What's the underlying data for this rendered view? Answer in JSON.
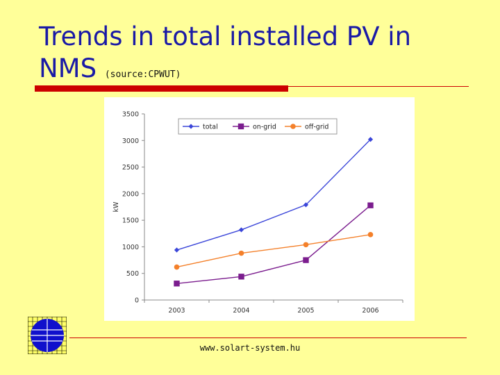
{
  "slide": {
    "title": "Trends in total installed PV in",
    "title_line2": "NMS",
    "subtitle": "(source:CPWUT)",
    "footer": "www.solart-system.hu"
  },
  "colors": {
    "background": "#ffff99",
    "title": "#1a1aa6",
    "rule": "#cc0000",
    "total": "#3b46d9",
    "on_grid": "#7b1d8e",
    "off_grid": "#f4802a"
  },
  "chart_data": {
    "type": "line",
    "title": "",
    "xlabel": "",
    "ylabel": "kW",
    "categories": [
      "2003",
      "2004",
      "2005",
      "2006"
    ],
    "ylim": [
      0,
      3500
    ],
    "yticks": [
      "0",
      "500",
      "1000",
      "1500",
      "2000",
      "2500",
      "3000",
      "3500"
    ],
    "legend_position": "top",
    "series": [
      {
        "name": "total",
        "marker": "diamond",
        "values": [
          940,
          1320,
          1790,
          3020
        ]
      },
      {
        "name": "on-grid",
        "marker": "square",
        "values": [
          310,
          440,
          750,
          1780
        ]
      },
      {
        "name": "off-grid",
        "marker": "circle",
        "values": [
          620,
          880,
          1040,
          1230
        ]
      }
    ]
  }
}
